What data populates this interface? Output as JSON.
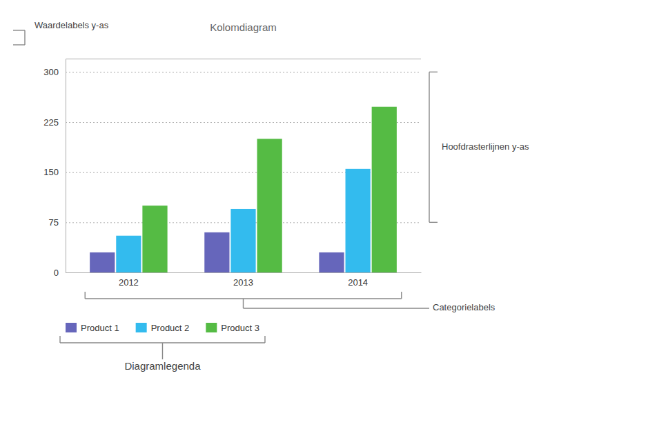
{
  "chart_data": {
    "type": "bar",
    "title": "Kolomdiagram",
    "categories": [
      "2012",
      "2013",
      "2014"
    ],
    "series": [
      {
        "name": "Product 1",
        "color": "#6666BB",
        "values": [
          30,
          60,
          30
        ]
      },
      {
        "name": "Product 2",
        "color": "#33BBEE",
        "values": [
          55,
          95,
          155
        ]
      },
      {
        "name": "Product 3",
        "color": "#55BB44",
        "values": [
          100,
          200,
          248
        ]
      }
    ],
    "ylim": [
      0,
      320
    ],
    "yticks": [
      0,
      75,
      150,
      225,
      300
    ],
    "grid": true,
    "legend": "bottom",
    "annotations": [
      "Waardelabels y-as",
      "Hoofdrasterlijnen y-as",
      "Categorielabels",
      "Diagramlegenda"
    ]
  }
}
